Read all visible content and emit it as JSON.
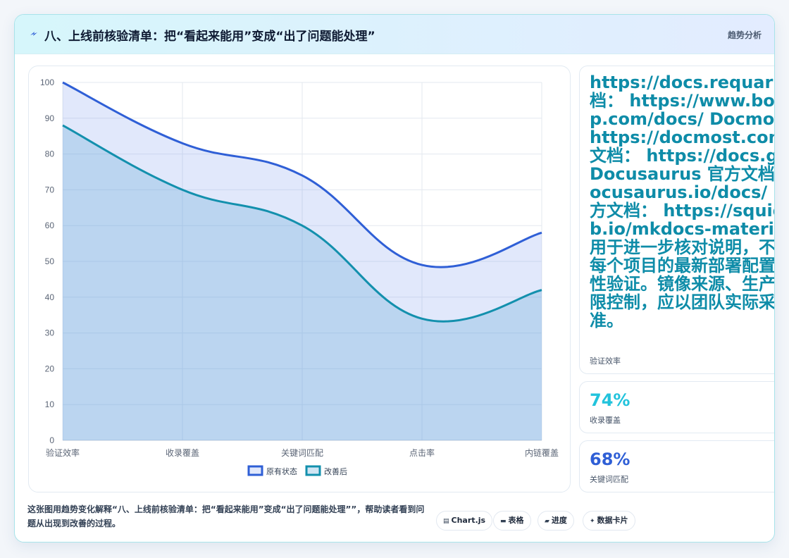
{
  "header": {
    "title": "八、上线前核验清单：把“看起来能用”变成“出了问题能处理”",
    "right_label": "趋势分析"
  },
  "side_panels": {
    "links_text": "https://docs.requarks.io/ 官方文档： https://www.bookstackapp.com/docs/ Docmost 官方文档： https://docmost.com/docs/ 官方文档： https://docs.github.com/ Docusaurus 官方文档： https://docusaurus.io/docs/ Material 官方文档： https://squidfunk.github.io/mkdocs-material/ 以上链接用于进一步核对说明，不代表本文已对每个项目的最新部署配置完成实时兼容性验证。镜像来源、生产部署建议与权限控制，应以团队实际采用的版本为准。",
    "links_label": "验证效率",
    "stat1_value": "74%",
    "stat1_label": "收录覆盖",
    "stat2_value": "68%",
    "stat2_label": "关键词匹配"
  },
  "caption": "这张图用趋势变化解释“八、上线前核验清单：把“看起来能用”变成“出了问题能处理””，帮助读者看到问题从出现到改善的过程。",
  "chips": [
    {
      "icon": "chart-icon",
      "glyph": "▤",
      "label": "Chart.js"
    },
    {
      "icon": "table-icon",
      "glyph": "▬",
      "label": "表格"
    },
    {
      "icon": "progress-icon",
      "glyph": "▰",
      "label": "进度"
    },
    {
      "icon": "sparkle-icon",
      "glyph": "✦",
      "label": "数据卡片"
    }
  ],
  "colors": {
    "series1": "#2f5fd6",
    "series2": "#1390ad",
    "stat1": "#22c3dc",
    "stat2": "#2f5fd6"
  },
  "chart_data": {
    "type": "area",
    "categories": [
      "验证效率",
      "收录覆盖",
      "关键词匹配",
      "点击率",
      "内链覆盖"
    ],
    "series": [
      {
        "name": "原有状态",
        "values": [
          100,
          83,
          74,
          49,
          58
        ]
      },
      {
        "name": "改善后",
        "values": [
          88,
          70,
          60,
          34,
          42
        ]
      }
    ],
    "ylim": [
      0,
      100
    ],
    "yticks": [
      0,
      10,
      20,
      30,
      40,
      50,
      60,
      70,
      80,
      90,
      100
    ],
    "legend": "bottom",
    "grid": true
  }
}
